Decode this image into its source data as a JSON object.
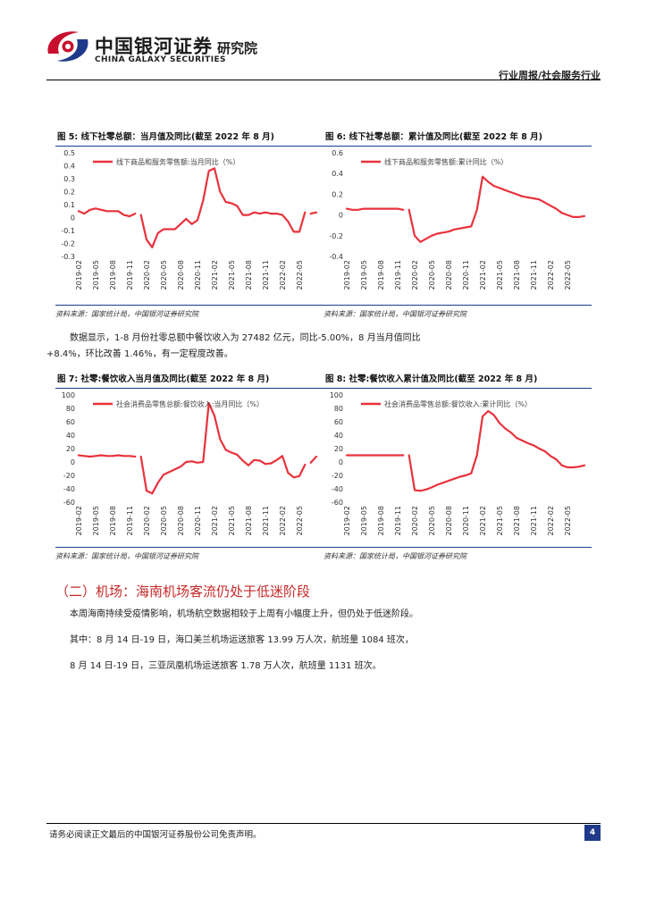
{
  "header": {
    "brand_cn": "中国银河证券",
    "brand_en": "CHINA GALAXY SECURITIES",
    "brand_sub": "研究院",
    "report_tag": "行业周报/社会服务行业"
  },
  "colors": {
    "series": "#e8323c",
    "rule": "#1a3d8f",
    "heading": "#c62828",
    "page_badge": "#1f3a8a"
  },
  "figures": [
    {
      "title": "图 5: 线下社零总额：当月值及同比(截至 2022 年 8 月)",
      "source": "资料来源：国家统计局，中国银河证券研究院"
    },
    {
      "title": "图 6: 线下社零总额：累计值及同比(截至 2022 年 8 月)",
      "source": "资料来源：国家统计局，中国银河证券研究院"
    },
    {
      "title": "图 7: 社零:餐饮收入当月值及同比(截至 2022 年 8 月)",
      "source": "资料来源：国家统计局，中国银河证券研究院"
    },
    {
      "title": "图 8: 社零:餐饮收入累计值及同比(截至 2022 年 8 月)",
      "source": "资料来源：国家统计局，中国银河证券研究院"
    }
  ],
  "chart_data": [
    {
      "type": "line",
      "title": "图 5: 线下社零总额：当月值及同比(截至 2022 年 8 月)",
      "legend": "线下商品和服务零售额:当月同比（%）",
      "x_tick_labels": [
        "2019-02",
        "2019-05",
        "2019-08",
        "2019-11",
        "2020-02",
        "2020-05",
        "2020-08",
        "2020-11",
        "2021-02",
        "2021-05",
        "2021-08",
        "2021-11",
        "2022-02",
        "2022-05"
      ],
      "y_ticks": [
        "0.5",
        "0.4",
        "0.3",
        "0.2",
        "0.1",
        "0",
        "-0.1",
        "-0.2",
        "-0.3"
      ],
      "ylim": [
        -0.3,
        0.5
      ],
      "x": [
        "2019-02",
        "2019-03",
        "2019-04",
        "2019-05",
        "2019-06",
        "2019-07",
        "2019-08",
        "2019-09",
        "2019-10",
        "2019-11",
        "2019-12",
        "2020-01",
        "2020-02",
        "2020-03",
        "2020-04",
        "2020-05",
        "2020-06",
        "2020-07",
        "2020-08",
        "2020-09",
        "2020-10",
        "2020-11",
        "2020-12",
        "2021-01",
        "2021-02",
        "2021-03",
        "2021-04",
        "2021-05",
        "2021-06",
        "2021-07",
        "2021-08",
        "2021-09",
        "2021-10",
        "2021-11",
        "2021-12",
        "2022-01",
        "2022-02",
        "2022-03",
        "2022-04",
        "2022-05",
        "2022-06",
        "2022-07",
        "2022-08"
      ],
      "values": [
        0.05,
        0.03,
        0.06,
        0.07,
        0.06,
        0.05,
        0.05,
        0.05,
        0.02,
        0.01,
        0.03,
        0.02,
        -0.17,
        -0.23,
        -0.12,
        -0.09,
        -0.09,
        -0.09,
        -0.05,
        -0.01,
        -0.05,
        -0.02,
        0.13,
        0.36,
        0.38,
        0.2,
        0.12,
        0.11,
        0.09,
        0.02,
        0.02,
        0.04,
        0.03,
        0.04,
        0.03,
        0.03,
        0.02,
        -0.03,
        -0.11,
        -0.11,
        0.04,
        0.03,
        0.04
      ],
      "gap_after": [
        "2019-12",
        "2022-06"
      ]
    },
    {
      "type": "line",
      "title": "图 6: 线下社零总额：累计值及同比(截至 2022 年 8 月)",
      "legend": "线下商品和服务零售额:累计同比（%）",
      "x_tick_labels": [
        "2019-02",
        "2019-05",
        "2019-08",
        "2019-11",
        "2020-02",
        "2020-05",
        "2020-08",
        "2020-11",
        "2021-02",
        "2021-05",
        "2021-08",
        "2021-11",
        "2022-02",
        "2022-05"
      ],
      "y_ticks": [
        "0.6",
        "0.4",
        "0.2",
        "0",
        "-0.2",
        "-0.4"
      ],
      "ylim": [
        -0.4,
        0.6
      ],
      "x": [
        "2019-02",
        "2019-03",
        "2019-04",
        "2019-05",
        "2019-06",
        "2019-07",
        "2019-08",
        "2019-09",
        "2019-10",
        "2019-11",
        "2019-12",
        "2020-01",
        "2020-02",
        "2020-03",
        "2020-04",
        "2020-05",
        "2020-06",
        "2020-07",
        "2020-08",
        "2020-09",
        "2020-10",
        "2020-11",
        "2020-12",
        "2021-01",
        "2021-02",
        "2021-03",
        "2021-04",
        "2021-05",
        "2021-06",
        "2021-07",
        "2021-08",
        "2021-09",
        "2021-10",
        "2021-11",
        "2021-12",
        "2022-01",
        "2022-02",
        "2022-03",
        "2022-04",
        "2022-05",
        "2022-06",
        "2022-07",
        "2022-08"
      ],
      "values": [
        0.06,
        0.05,
        0.05,
        0.06,
        0.06,
        0.06,
        0.06,
        0.06,
        0.06,
        0.06,
        0.05,
        0.05,
        -0.2,
        -0.26,
        -0.23,
        -0.2,
        -0.18,
        -0.17,
        -0.16,
        -0.14,
        -0.13,
        -0.12,
        -0.11,
        0.05,
        0.37,
        0.32,
        0.28,
        0.26,
        0.24,
        0.22,
        0.2,
        0.18,
        0.17,
        0.16,
        0.15,
        0.12,
        0.09,
        0.06,
        0.02,
        0.0,
        -0.02,
        -0.02,
        -0.01
      ],
      "gap_after": [
        "2019-12"
      ]
    },
    {
      "type": "line",
      "title": "图 7: 社零:餐饮收入当月值及同比(截至 2022 年 8 月)",
      "legend": "社会消费品零售总额:餐饮收入:当月同比（%）",
      "x_tick_labels": [
        "2019-02",
        "2019-05",
        "2019-08",
        "2019-11",
        "2020-02",
        "2020-05",
        "2020-08",
        "2020-11",
        "2021-02",
        "2021-05",
        "2021-08",
        "2021-11",
        "2022-02",
        "2022-05"
      ],
      "y_ticks": [
        "100",
        "80",
        "60",
        "40",
        "20",
        "0",
        "-20",
        "-40",
        "-60"
      ],
      "ylim": [
        -60,
        100
      ],
      "x": [
        "2019-02",
        "2019-03",
        "2019-04",
        "2019-05",
        "2019-06",
        "2019-07",
        "2019-08",
        "2019-09",
        "2019-10",
        "2019-11",
        "2019-12",
        "2020-01",
        "2020-02",
        "2020-03",
        "2020-04",
        "2020-05",
        "2020-06",
        "2020-07",
        "2020-08",
        "2020-09",
        "2020-10",
        "2020-11",
        "2020-12",
        "2021-01",
        "2021-02",
        "2021-03",
        "2021-04",
        "2021-05",
        "2021-06",
        "2021-07",
        "2021-08",
        "2021-09",
        "2021-10",
        "2021-11",
        "2021-12",
        "2022-01",
        "2022-02",
        "2022-03",
        "2022-04",
        "2022-05",
        "2022-06",
        "2022-07",
        "2022-08"
      ],
      "values": [
        10,
        9,
        8,
        9,
        10,
        9,
        9,
        10,
        9,
        9,
        8,
        8,
        -43,
        -47,
        -31,
        -19,
        -15,
        -11,
        -7,
        0,
        1,
        -1,
        0,
        88,
        69,
        34,
        18,
        14,
        11,
        2,
        -5,
        3,
        2,
        -3,
        -2,
        3,
        9,
        -16,
        -23,
        -21,
        -4,
        -1,
        8
      ],
      "gap_after": [
        "2019-12",
        "2022-06"
      ]
    },
    {
      "type": "line",
      "title": "图 8: 社零:餐饮收入累计值及同比(截至 2022 年 8 月)",
      "legend": "社会消费品零售总额:餐饮收入:累计同比（%）",
      "x_tick_labels": [
        "2019-02",
        "2019-05",
        "2019-08",
        "2019-11",
        "2020-02",
        "2020-05",
        "2020-08",
        "2020-11",
        "2021-02",
        "2021-05",
        "2021-08",
        "2021-11",
        "2022-02",
        "2022-05"
      ],
      "y_ticks": [
        "100",
        "80",
        "60",
        "40",
        "20",
        "0",
        "-20",
        "-40",
        "-60"
      ],
      "ylim": [
        -60,
        100
      ],
      "x": [
        "2019-02",
        "2019-03",
        "2019-04",
        "2019-05",
        "2019-06",
        "2019-07",
        "2019-08",
        "2019-09",
        "2019-10",
        "2019-11",
        "2019-12",
        "2020-01",
        "2020-02",
        "2020-03",
        "2020-04",
        "2020-05",
        "2020-06",
        "2020-07",
        "2020-08",
        "2020-09",
        "2020-10",
        "2020-11",
        "2020-12",
        "2021-01",
        "2021-02",
        "2021-03",
        "2021-04",
        "2021-05",
        "2021-06",
        "2021-07",
        "2021-08",
        "2021-09",
        "2021-10",
        "2021-11",
        "2021-12",
        "2022-01",
        "2022-02",
        "2022-03",
        "2022-04",
        "2022-05",
        "2022-06",
        "2022-07",
        "2022-08"
      ],
      "values": [
        10,
        10,
        10,
        10,
        10,
        10,
        10,
        10,
        10,
        10,
        10,
        10,
        -42,
        -43,
        -41,
        -38,
        -34,
        -31,
        -28,
        -25,
        -22,
        -20,
        -17,
        10,
        68,
        76,
        70,
        58,
        50,
        44,
        36,
        32,
        28,
        25,
        20,
        16,
        9,
        4,
        -5,
        -8,
        -8,
        -7,
        -5
      ],
      "gap_after": [
        "2019-12"
      ]
    }
  ],
  "body": {
    "para1_line1": "数据显示，1-8 月份社零总额中餐饮收入为 27482 亿元，同比-5.00%，8 月当月值同比",
    "para1_line2": "+8.4%，环比改善 1.46%，有一定程度改善。",
    "section_heading": "（二）机场：海南机场客流仍处于低迷阶段",
    "para2": "本周海南持续受疫情影响，机场航空数据相较于上周有小幅度上升，但仍处于低迷阶段。",
    "para3": "其中：8 月 14 日-19 日，海口美兰机场运送旅客 13.99 万人次，航班量 1084 班次，",
    "para4": "8 月 14 日-19 日，三亚凤凰机场运送旅客 1.78 万人次，航班量 1131 班次。"
  },
  "footer": {
    "disclaimer": "请务必阅读正文最后的中国银河证券股份公司免责声明。",
    "page_number": "4"
  }
}
